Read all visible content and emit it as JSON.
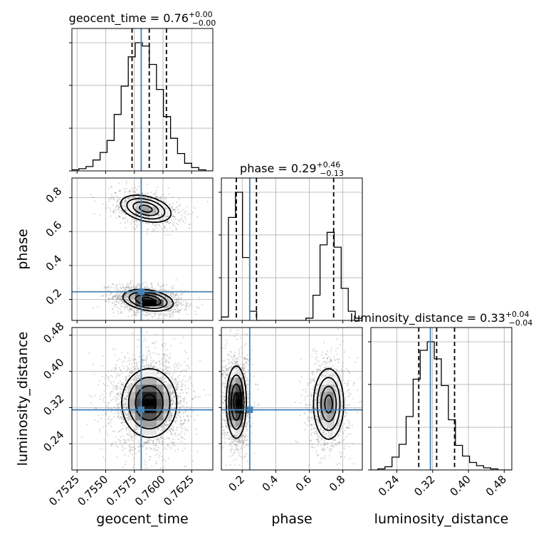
{
  "chart_data": {
    "type": "corner",
    "parameters": [
      "geocent_time",
      "phase",
      "luminosity_distance"
    ],
    "truths": {
      "geocent_time": 0.7581,
      "phase": 0.245,
      "luminosity_distance": 0.315
    },
    "colors": {
      "truth": "#4682b4",
      "hist": "#000000",
      "grid": "#b0b0b0",
      "quantile": "#000000"
    },
    "grid": true,
    "titles": [
      {
        "param": "geocent_time",
        "text": "geocent_time = 0.76",
        "sup": "+0.00",
        "sub": "−0.00"
      },
      {
        "param": "phase",
        "text": "phase = 0.29",
        "sup": "+0.46",
        "sub": "−0.13"
      },
      {
        "param": "luminosity_distance",
        "text": "luminosity_distance = 0.33",
        "sup": "+0.04",
        "sub": "−0.04"
      }
    ],
    "axis_labels": {
      "geocent_time": "geocent_time",
      "phase": "phase",
      "luminosity_distance": "luminosity_distance"
    },
    "ranges": {
      "geocent_time": [
        0.75205,
        0.76435
      ],
      "phase": [
        0.076,
        0.916
      ],
      "luminosity_distance": [
        0.182,
        0.497
      ]
    },
    "ticks": {
      "geocent_time": [
        {
          "value": 0.7525,
          "label": "0.7525"
        },
        {
          "value": 0.755,
          "label": "0.7550"
        },
        {
          "value": 0.7575,
          "label": "0.7575"
        },
        {
          "value": 0.76,
          "label": "0.7600"
        },
        {
          "value": 0.7625,
          "label": "0.7625"
        }
      ],
      "phase": [
        {
          "value": 0.2,
          "label": "0.2"
        },
        {
          "value": 0.4,
          "label": "0.4"
        },
        {
          "value": 0.6,
          "label": "0.6"
        },
        {
          "value": 0.8,
          "label": "0.8"
        }
      ],
      "luminosity_distance": [
        {
          "value": 0.24,
          "label": "0.24"
        },
        {
          "value": 0.32,
          "label": "0.32"
        },
        {
          "value": 0.4,
          "label": "0.40"
        },
        {
          "value": 0.48,
          "label": "0.48"
        }
      ]
    },
    "histograms": [
      {
        "param": "geocent_time",
        "edges": [
          0.75205,
          0.75266,
          0.75328,
          0.75389,
          0.75451,
          0.75512,
          0.75574,
          0.75635,
          0.75697,
          0.75758,
          0.7582,
          0.75881,
          0.75943,
          0.76004,
          0.76066,
          0.76127,
          0.76189,
          0.7625,
          0.76312,
          0.76373,
          0.76435
        ],
        "counts": [
          1,
          2,
          4,
          10,
          17,
          28,
          52,
          78,
          105,
          118,
          115,
          98,
          75,
          50,
          30,
          16,
          7,
          3,
          1,
          0
        ],
        "quantiles": [
          0.7573,
          0.7588,
          0.7603
        ]
      },
      {
        "param": "phase",
        "edges": [
          0.076,
          0.118,
          0.16,
          0.202,
          0.244,
          0.286,
          0.328,
          0.37,
          0.412,
          0.454,
          0.496,
          0.538,
          0.58,
          0.622,
          0.664,
          0.706,
          0.748,
          0.79,
          0.832,
          0.874,
          0.916
        ],
        "counts": [
          3,
          90,
          112,
          55,
          8,
          0,
          0,
          0,
          0,
          0,
          0,
          0,
          2,
          22,
          66,
          77,
          64,
          28,
          8,
          2
        ],
        "quantiles": [
          0.165,
          0.285,
          0.745
        ]
      },
      {
        "param": "luminosity_distance",
        "edges": [
          0.182,
          0.19775,
          0.2135,
          0.22925,
          0.245,
          0.26075,
          0.2765,
          0.29225,
          0.308,
          0.32375,
          0.3395,
          0.35525,
          0.371,
          0.38675,
          0.4025,
          0.41825,
          0.434,
          0.44975,
          0.4655,
          0.48125,
          0.497
        ],
        "counts": [
          0,
          1,
          3,
          12,
          24,
          50,
          85,
          112,
          120,
          104,
          79,
          47,
          23,
          13,
          7,
          4,
          2,
          1,
          0,
          0
        ],
        "quantiles": [
          0.289,
          0.329,
          0.369
        ]
      }
    ],
    "pairs": [
      {
        "x": "geocent_time",
        "y": "phase",
        "modes": [
          {
            "cx": 0.7587,
            "cy": 0.195,
            "sx": 0.0011,
            "sy": 0.032,
            "rho": -0.3,
            "weight": 0.65
          },
          {
            "cx": 0.7585,
            "cy": 0.735,
            "sx": 0.0011,
            "sy": 0.04,
            "rho": -0.35,
            "weight": 0.35
          }
        ]
      },
      {
        "x": "geocent_time",
        "y": "luminosity_distance",
        "modes": [
          {
            "cx": 0.7588,
            "cy": 0.33,
            "sx": 0.0012,
            "sy": 0.038,
            "rho": 0.0,
            "weight": 1.0
          }
        ]
      },
      {
        "x": "phase",
        "y": "luminosity_distance",
        "modes": [
          {
            "cx": 0.165,
            "cy": 0.332,
            "sx": 0.03,
            "sy": 0.04,
            "rho": 0.0,
            "weight": 0.55
          },
          {
            "cx": 0.715,
            "cy": 0.328,
            "sx": 0.045,
            "sy": 0.039,
            "rho": 0.0,
            "weight": 0.45
          }
        ]
      }
    ]
  }
}
